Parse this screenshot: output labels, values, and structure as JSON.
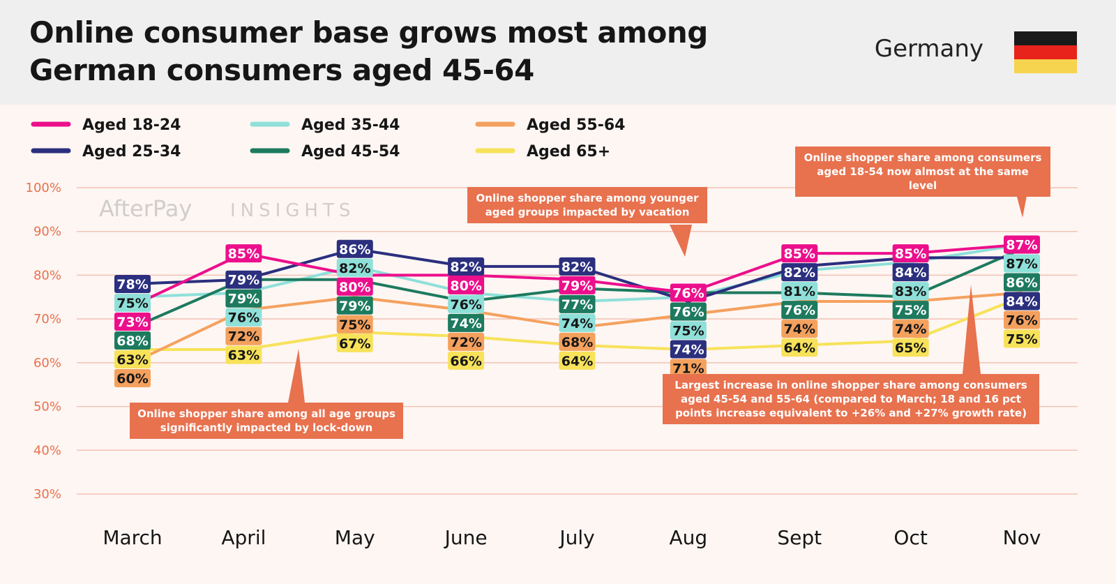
{
  "title": "Online consumer base grows most among German consumers aged 45-64",
  "country": "Germany",
  "flag_colors": [
    "#1a1a1a",
    "#e8231b",
    "#f7d450"
  ],
  "watermark": {
    "brand": "AfterPay",
    "suffix": "INSIGHTS"
  },
  "callouts": [
    "Online shopper share among all age groups significantly impacted by lock-down",
    "Online shopper share among younger aged groups impacted by vacation",
    "Online shopper share among consumers aged 18-54 now almost at the same level",
    "Largest increase in online shopper share among consumers aged 45-54 and 55-64 (compared to March; 18 and 16 pct points increase equivalent to +26% and +27% growth rate)"
  ],
  "chart_data": {
    "type": "line",
    "x": [
      "March",
      "April",
      "May",
      "June",
      "July",
      "Aug",
      "Sept",
      "Oct",
      "Nov"
    ],
    "ylim": [
      30,
      100
    ],
    "yticks": [
      30,
      40,
      50,
      60,
      70,
      80,
      90,
      100
    ],
    "ytick_labels": [
      "30%",
      "40%",
      "50%",
      "60%",
      "70%",
      "80%",
      "90%",
      "100%"
    ],
    "legend_position": "top-left",
    "grid": true,
    "series": [
      {
        "name": "Aged 18-24",
        "color": "#ec0f8c",
        "text_color": "#ffffff",
        "values": [
          73,
          85,
          80,
          80,
          79,
          76,
          85,
          85,
          87
        ]
      },
      {
        "name": "Aged 25-34",
        "color": "#2b2f7e",
        "text_color": "#ffffff",
        "values": [
          78,
          79,
          86,
          82,
          82,
          74,
          82,
          84,
          84
        ]
      },
      {
        "name": "Aged 35-44",
        "color": "#8fe0d9",
        "text_color": "#161616",
        "values": [
          75,
          76,
          82,
          76,
          74,
          75,
          81,
          83,
          87
        ]
      },
      {
        "name": "Aged 45-54",
        "color": "#1d7a5e",
        "text_color": "#ffffff",
        "values": [
          68,
          79,
          79,
          74,
          77,
          76,
          76,
          75,
          86
        ]
      },
      {
        "name": "Aged 55-64",
        "color": "#f4a15e",
        "text_color": "#161616",
        "values": [
          60,
          72,
          75,
          72,
          68,
          71,
          74,
          74,
          76
        ]
      },
      {
        "name": "Aged 65+",
        "color": "#f7e25a",
        "text_color": "#161616",
        "values": [
          63,
          63,
          67,
          66,
          64,
          63,
          64,
          65,
          75
        ]
      }
    ]
  }
}
